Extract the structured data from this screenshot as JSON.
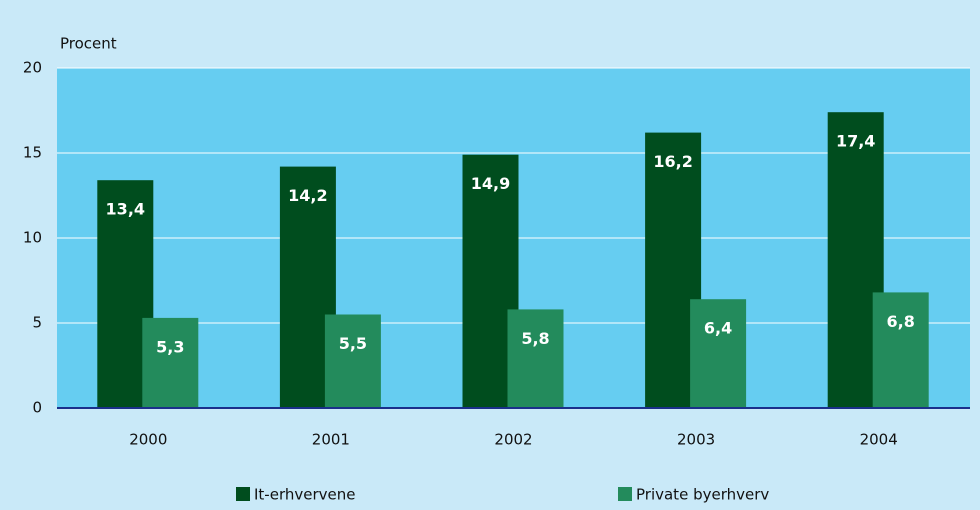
{
  "chart_data": {
    "type": "bar",
    "y_label": "Procent",
    "categories": [
      "2000",
      "2001",
      "2002",
      "2003",
      "2004"
    ],
    "series": [
      {
        "name": "It-erhvervene",
        "color": "#004d1e",
        "values": [
          13.4,
          14.2,
          14.9,
          16.2,
          17.4
        ],
        "value_labels": [
          "13,4",
          "14,2",
          "14,9",
          "16,2",
          "17,4"
        ]
      },
      {
        "name": "Private byerhverv",
        "color": "#238b5c",
        "values": [
          5.3,
          5.5,
          5.8,
          6.4,
          6.8
        ],
        "value_labels": [
          "5,3",
          "5,5",
          "5,8",
          "6,4",
          "6,8"
        ]
      }
    ],
    "ylim": [
      0,
      20
    ],
    "yticks": [
      0,
      5,
      10,
      15,
      20
    ],
    "grid": true
  }
}
